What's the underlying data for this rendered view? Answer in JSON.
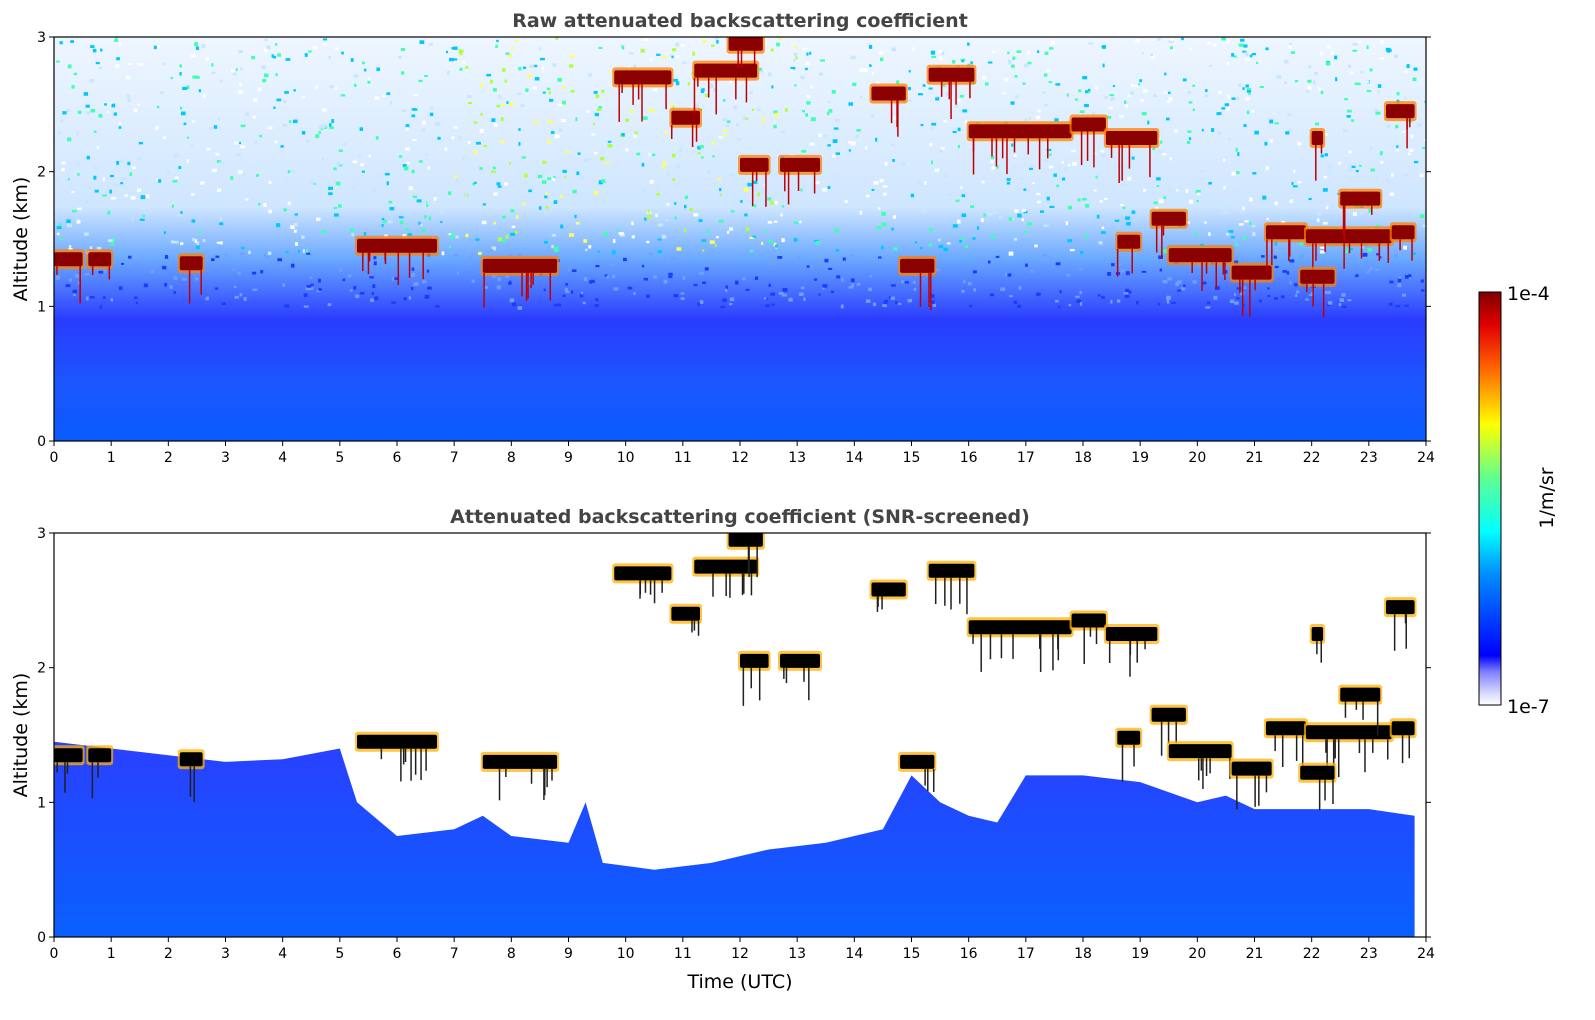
{
  "chart_data": [
    {
      "type": "heatmap",
      "title": "Raw attenuated backscattering coefficient",
      "xlabel": "",
      "ylabel": "Altitude (km)",
      "xlim": [
        0,
        24
      ],
      "ylim": [
        0,
        3
      ],
      "xticks": [
        "0",
        "1",
        "2",
        "3",
        "4",
        "5",
        "6",
        "7",
        "8",
        "9",
        "10",
        "11",
        "12",
        "13",
        "14",
        "15",
        "16",
        "17",
        "18",
        "19",
        "20",
        "21",
        "22",
        "23",
        "24"
      ],
      "yticks": [
        "0",
        "1",
        "2",
        "3"
      ],
      "screened": false,
      "cloud_layers": [
        {
          "t0": 0.0,
          "t1": 0.5,
          "alt": 1.35
        },
        {
          "t0": 0.6,
          "t1": 1.0,
          "alt": 1.35
        },
        {
          "t0": 2.2,
          "t1": 2.6,
          "alt": 1.32
        },
        {
          "t0": 5.3,
          "t1": 6.7,
          "alt": 1.45
        },
        {
          "t0": 7.5,
          "t1": 8.8,
          "alt": 1.3
        },
        {
          "t0": 9.8,
          "t1": 10.8,
          "alt": 2.7
        },
        {
          "t0": 10.8,
          "t1": 11.3,
          "alt": 2.4
        },
        {
          "t0": 11.2,
          "t1": 12.3,
          "alt": 2.75
        },
        {
          "t0": 11.8,
          "t1": 12.4,
          "alt": 2.95
        },
        {
          "t0": 12.0,
          "t1": 12.5,
          "alt": 2.05
        },
        {
          "t0": 12.7,
          "t1": 13.4,
          "alt": 2.05
        },
        {
          "t0": 14.3,
          "t1": 14.9,
          "alt": 2.58
        },
        {
          "t0": 15.3,
          "t1": 16.1,
          "alt": 2.72
        },
        {
          "t0": 14.8,
          "t1": 15.4,
          "alt": 1.3
        },
        {
          "t0": 16.0,
          "t1": 17.8,
          "alt": 2.3
        },
        {
          "t0": 17.8,
          "t1": 18.4,
          "alt": 2.35
        },
        {
          "t0": 18.4,
          "t1": 19.3,
          "alt": 2.25
        },
        {
          "t0": 18.6,
          "t1": 19.0,
          "alt": 1.48
        },
        {
          "t0": 19.2,
          "t1": 19.8,
          "alt": 1.65
        },
        {
          "t0": 19.5,
          "t1": 20.6,
          "alt": 1.38
        },
        {
          "t0": 20.6,
          "t1": 21.3,
          "alt": 1.25
        },
        {
          "t0": 21.2,
          "t1": 21.9,
          "alt": 1.55
        },
        {
          "t0": 21.9,
          "t1": 23.4,
          "alt": 1.52
        },
        {
          "t0": 22.5,
          "t1": 23.2,
          "alt": 1.8
        },
        {
          "t0": 23.4,
          "t1": 23.8,
          "alt": 1.55
        },
        {
          "t0": 23.3,
          "t1": 23.8,
          "alt": 2.45
        },
        {
          "t0": 22.0,
          "t1": 22.2,
          "alt": 2.25
        },
        {
          "t0": 21.8,
          "t1": 22.4,
          "alt": 1.22
        }
      ]
    },
    {
      "type": "heatmap",
      "title": "Attenuated backscattering coefficient (SNR-screened)",
      "xlabel": "Time (UTC)",
      "ylabel": "Altitude (km)",
      "xlim": [
        0,
        24
      ],
      "ylim": [
        0,
        3
      ],
      "xticks": [
        "0",
        "1",
        "2",
        "3",
        "4",
        "5",
        "6",
        "7",
        "8",
        "9",
        "10",
        "11",
        "12",
        "13",
        "14",
        "15",
        "16",
        "17",
        "18",
        "19",
        "20",
        "21",
        "22",
        "23",
        "24"
      ],
      "yticks": [
        "0",
        "1",
        "2",
        "3"
      ],
      "screened": true,
      "cloud_layers": [
        {
          "t0": 0.0,
          "t1": 0.5,
          "alt": 1.35
        },
        {
          "t0": 0.6,
          "t1": 1.0,
          "alt": 1.35
        },
        {
          "t0": 2.2,
          "t1": 2.6,
          "alt": 1.32
        },
        {
          "t0": 5.3,
          "t1": 6.7,
          "alt": 1.45
        },
        {
          "t0": 7.5,
          "t1": 8.8,
          "alt": 1.3
        },
        {
          "t0": 9.8,
          "t1": 10.8,
          "alt": 2.7
        },
        {
          "t0": 10.8,
          "t1": 11.3,
          "alt": 2.4
        },
        {
          "t0": 11.2,
          "t1": 12.3,
          "alt": 2.75
        },
        {
          "t0": 11.8,
          "t1": 12.4,
          "alt": 2.95
        },
        {
          "t0": 12.0,
          "t1": 12.5,
          "alt": 2.05
        },
        {
          "t0": 12.7,
          "t1": 13.4,
          "alt": 2.05
        },
        {
          "t0": 14.3,
          "t1": 14.9,
          "alt": 2.58
        },
        {
          "t0": 15.3,
          "t1": 16.1,
          "alt": 2.72
        },
        {
          "t0": 14.8,
          "t1": 15.4,
          "alt": 1.3
        },
        {
          "t0": 16.0,
          "t1": 17.8,
          "alt": 2.3
        },
        {
          "t0": 17.8,
          "t1": 18.4,
          "alt": 2.35
        },
        {
          "t0": 18.4,
          "t1": 19.3,
          "alt": 2.25
        },
        {
          "t0": 18.6,
          "t1": 19.0,
          "alt": 1.48
        },
        {
          "t0": 19.2,
          "t1": 19.8,
          "alt": 1.65
        },
        {
          "t0": 19.5,
          "t1": 20.6,
          "alt": 1.38
        },
        {
          "t0": 20.6,
          "t1": 21.3,
          "alt": 1.25
        },
        {
          "t0": 21.2,
          "t1": 21.9,
          "alt": 1.55
        },
        {
          "t0": 21.9,
          "t1": 23.4,
          "alt": 1.52
        },
        {
          "t0": 22.5,
          "t1": 23.2,
          "alt": 1.8
        },
        {
          "t0": 23.4,
          "t1": 23.8,
          "alt": 1.55
        },
        {
          "t0": 23.3,
          "t1": 23.8,
          "alt": 2.45
        },
        {
          "t0": 22.0,
          "t1": 22.2,
          "alt": 2.25
        },
        {
          "t0": 21.8,
          "t1": 22.4,
          "alt": 1.22
        }
      ]
    }
  ],
  "colorbar": {
    "label": "1/m/sr",
    "max_label": "1e-4",
    "min_label": "1e-7",
    "scale": "log",
    "range": [
      1e-07,
      0.0001
    ]
  }
}
